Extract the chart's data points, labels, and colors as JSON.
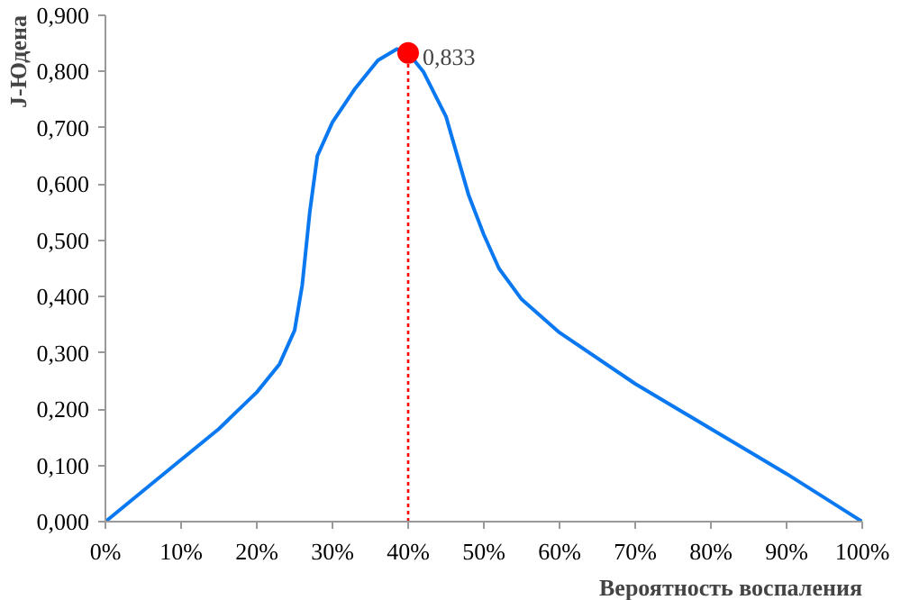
{
  "chart_data": {
    "type": "line",
    "xlabel": "Вероятность воспаления",
    "ylabel": "J-Юдена",
    "xlim": [
      0,
      100
    ],
    "ylim": [
      0,
      0.9
    ],
    "xticks": [
      {
        "value": 0,
        "label": "0%"
      },
      {
        "value": 10,
        "label": "10%"
      },
      {
        "value": 20,
        "label": "20%"
      },
      {
        "value": 30,
        "label": "30%"
      },
      {
        "value": 40,
        "label": "40%"
      },
      {
        "value": 50,
        "label": "50%"
      },
      {
        "value": 60,
        "label": "60%"
      },
      {
        "value": 70,
        "label": "70%"
      },
      {
        "value": 80,
        "label": "80%"
      },
      {
        "value": 90,
        "label": "90%"
      },
      {
        "value": 100,
        "label": "100%"
      }
    ],
    "yticks": [
      {
        "value": 0,
        "label": "0,000"
      },
      {
        "value": 0.1,
        "label": "0,100"
      },
      {
        "value": 0.2,
        "label": "0,200"
      },
      {
        "value": 0.3,
        "label": "0,300"
      },
      {
        "value": 0.4,
        "label": "0,400"
      },
      {
        "value": 0.5,
        "label": "0,500"
      },
      {
        "value": 0.6,
        "label": "0,600"
      },
      {
        "value": 0.7,
        "label": "0,700"
      },
      {
        "value": 0.8,
        "label": "0,800"
      },
      {
        "value": 0.9,
        "label": "0,900"
      }
    ],
    "grid": false,
    "series": [
      {
        "color": "#0a78f0",
        "x": [
          0,
          10,
          15,
          20,
          23,
          25,
          26,
          27,
          28,
          30,
          33,
          36,
          38.5,
          40,
          42,
          45,
          48,
          50,
          52,
          55,
          60,
          70,
          80,
          90,
          100
        ],
        "values": [
          0,
          0.11,
          0.165,
          0.23,
          0.28,
          0.34,
          0.42,
          0.55,
          0.65,
          0.71,
          0.77,
          0.82,
          0.84,
          0.833,
          0.8,
          0.72,
          0.58,
          0.51,
          0.45,
          0.395,
          0.336,
          0.245,
          0.165,
          0.085,
          0
        ]
      },
      {
        "type": "scatter",
        "color": "#ff0000",
        "x": [
          40
        ],
        "values": [
          0.833
        ]
      }
    ],
    "ref_lines": [
      {
        "axis": "x",
        "value": 40,
        "color": "#ff0000",
        "line_style": "dotted"
      }
    ],
    "annotations": [
      {
        "text": "0,833",
        "x": 40,
        "y": 0.833
      }
    ]
  }
}
